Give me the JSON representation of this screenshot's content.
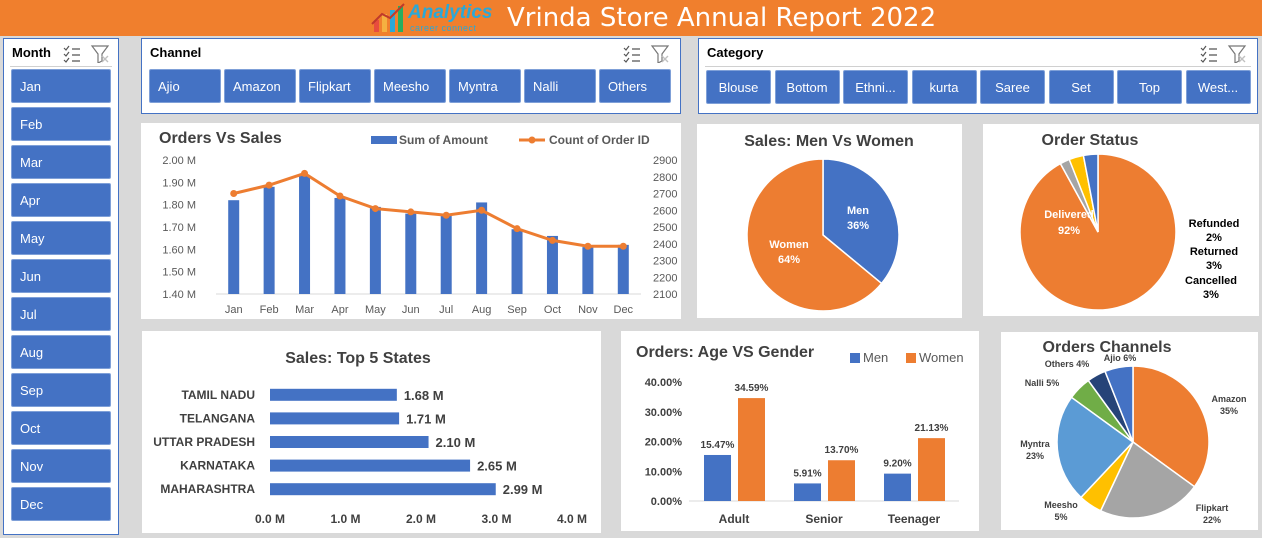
{
  "header": {
    "logo_main": "Analytics",
    "logo_sub": "career connect",
    "title": "Vrinda Store Annual Report 2022"
  },
  "slicers": {
    "month": {
      "title": "Month",
      "items": [
        "Jan",
        "Feb",
        "Mar",
        "Apr",
        "May",
        "Jun",
        "Jul",
        "Aug",
        "Sep",
        "Oct",
        "Nov",
        "Dec"
      ]
    },
    "channel": {
      "title": "Channel",
      "items": [
        "Ajio",
        "Amazon",
        "Flipkart",
        "Meesho",
        "Myntra",
        "Nalli",
        "Others"
      ]
    },
    "category": {
      "title": "Category",
      "items": [
        "Blouse",
        "Bottom",
        "Ethni...",
        "kurta",
        "Saree",
        "Set",
        "Top",
        "West..."
      ]
    }
  },
  "colors": {
    "blue": "#4472c4",
    "orange": "#ed7d31",
    "gray": "#a5a5a5",
    "yellow": "#ffc000",
    "lightblue": "#5b9bd5",
    "green": "#70ad47",
    "navy": "#264478",
    "header": "#f07f2d"
  },
  "chart_data": [
    {
      "id": "orders_vs_sales",
      "type": "bar+line",
      "title": "Orders Vs Sales",
      "categories": [
        "Jan",
        "Feb",
        "Mar",
        "Apr",
        "May",
        "Jun",
        "Jul",
        "Aug",
        "Sep",
        "Oct",
        "Nov",
        "Dec"
      ],
      "series": [
        {
          "name": "Sum of Amount",
          "type": "bar",
          "axis": "left",
          "values": [
            1.82,
            1.88,
            1.93,
            1.83,
            1.79,
            1.76,
            1.76,
            1.81,
            1.69,
            1.66,
            1.61,
            1.62
          ]
        },
        {
          "name": "Count of Order ID",
          "type": "line",
          "axis": "right",
          "values": [
            2700,
            2750,
            2820,
            2685,
            2610,
            2590,
            2570,
            2600,
            2490,
            2420,
            2385,
            2385
          ]
        }
      ],
      "y_left": {
        "min": 1.4,
        "max": 2.0,
        "ticks": [
          "1.40 M",
          "1.50 M",
          "1.60 M",
          "1.70 M",
          "1.80 M",
          "1.90 M",
          "2.00 M"
        ]
      },
      "y_right": {
        "min": 2100,
        "max": 2900,
        "ticks": [
          "2100",
          "2200",
          "2300",
          "2400",
          "2500",
          "2600",
          "2700",
          "2800",
          "2900"
        ]
      },
      "legend": "top"
    },
    {
      "id": "sales_men_women",
      "type": "pie",
      "title": "Sales:  Men Vs Women",
      "slices": [
        {
          "label": "Men",
          "pct_label": "36%",
          "value": 36,
          "color": "#4472c4"
        },
        {
          "label": "Women",
          "pct_label": "64%",
          "value": 64,
          "color": "#ed7d31"
        }
      ]
    },
    {
      "id": "order_status",
      "type": "pie",
      "title": "Order Status",
      "slices": [
        {
          "label": "Delivered",
          "pct_label": "92%",
          "value": 92,
          "color": "#ed7d31"
        },
        {
          "label": "Refunded",
          "pct_label": "2%",
          "value": 2,
          "color": "#a5a5a5"
        },
        {
          "label": "Returned",
          "pct_label": "3%",
          "value": 3,
          "color": "#ffc000"
        },
        {
          "label": "Cancelled",
          "pct_label": "3%",
          "value": 3,
          "color": "#4472c4"
        }
      ]
    },
    {
      "id": "top_states",
      "type": "bar",
      "orientation": "horizontal",
      "title": "Sales: Top 5 States",
      "categories": [
        "TAMIL NADU",
        "TELANGANA",
        "UTTAR PRADESH",
        "KARNATAKA",
        "MAHARASHTRA"
      ],
      "values": [
        1.68,
        1.71,
        2.1,
        2.65,
        2.99
      ],
      "value_labels": [
        "1.68 M",
        "1.71 M",
        "2.10 M",
        "2.65 M",
        "2.99 M"
      ],
      "xlim": [
        0,
        4
      ],
      "x_ticks": [
        "0.0 M",
        "1.0 M",
        "2.0 M",
        "3.0 M",
        "4.0 M"
      ]
    },
    {
      "id": "age_vs_gender",
      "type": "bar",
      "title": "Orders: Age  VS Gender",
      "categories": [
        "Adult",
        "Senior",
        "Teenager"
      ],
      "series": [
        {
          "name": "Men",
          "values": [
            15.47,
            5.91,
            9.2
          ],
          "labels": [
            "15.47%",
            "5.91%",
            "9.20%"
          ],
          "color": "#4472c4"
        },
        {
          "name": "Women",
          "values": [
            34.59,
            13.7,
            21.13
          ],
          "labels": [
            "34.59%",
            "13.70%",
            "21.13%"
          ],
          "color": "#ed7d31"
        }
      ],
      "ylim": [
        0,
        40
      ],
      "y_ticks": [
        "0.00%",
        "10.00%",
        "20.00%",
        "30.00%",
        "40.00%"
      ],
      "legend": "top-right"
    },
    {
      "id": "orders_channels",
      "type": "pie",
      "title": "Orders Channels",
      "slices": [
        {
          "label": "Amazon",
          "pct_label": "35%",
          "value": 35,
          "color": "#ed7d31"
        },
        {
          "label": "Flipkart",
          "pct_label": "22%",
          "value": 22,
          "color": "#a5a5a5"
        },
        {
          "label": "Meesho",
          "pct_label": "5%",
          "value": 5,
          "color": "#ffc000"
        },
        {
          "label": "Myntra",
          "pct_label": "23%",
          "value": 23,
          "color": "#5b9bd5"
        },
        {
          "label": "Nalli",
          "pct_label": "5%",
          "value": 5,
          "color": "#70ad47"
        },
        {
          "label": "Others",
          "pct_label": "4%",
          "value": 4,
          "color": "#264478"
        },
        {
          "label": "Ajio",
          "pct_label": "6%",
          "value": 6,
          "color": "#4472c4"
        }
      ]
    }
  ]
}
